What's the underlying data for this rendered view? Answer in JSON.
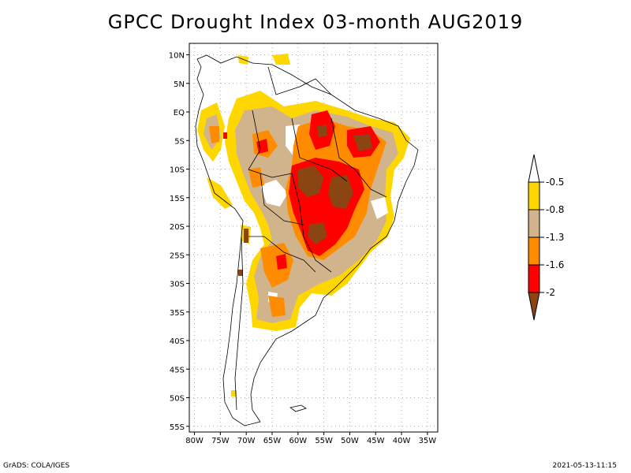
{
  "title": "GPCC Drought Index 03-month AUG2019",
  "footer": {
    "credit": "GrADS: COLA/IGES",
    "timestamp": "2021-05-13-11:15"
  },
  "axes": {
    "lat_labels": [
      "10N",
      "5N",
      "EQ",
      "5S",
      "10S",
      "15S",
      "20S",
      "25S",
      "30S",
      "35S",
      "40S",
      "45S",
      "50S",
      "55S"
    ],
    "lat_values": [
      10,
      5,
      0,
      -5,
      -10,
      -15,
      -20,
      -25,
      -30,
      -35,
      -40,
      -45,
      -50,
      -55
    ],
    "lon_labels": [
      "80W",
      "75W",
      "70W",
      "65W",
      "60W",
      "55W",
      "50W",
      "45W",
      "40W",
      "35W"
    ],
    "lon_values": [
      -80,
      -75,
      -70,
      -65,
      -60,
      -55,
      -50,
      -45,
      -40,
      -35
    ],
    "lon_range": [
      -81,
      -33
    ],
    "lat_range": [
      -56,
      12
    ]
  },
  "legend": {
    "labels": [
      "-0.5",
      "-0.8",
      "-1.3",
      "-1.6",
      "-2"
    ],
    "colors": [
      "#ffffff",
      "#ffd700",
      "#d2b48c",
      "#ff8c00",
      "#ff0000",
      "#8b4513"
    ]
  },
  "colors": {
    "land": "#ffffff",
    "grid": "#b0b0b0",
    "border": "#000000"
  }
}
